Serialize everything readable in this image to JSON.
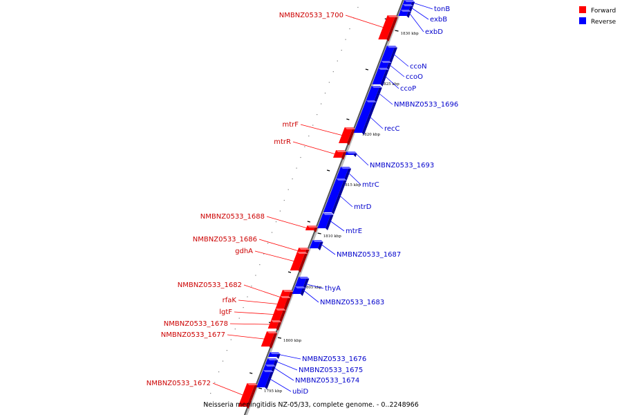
{
  "legend": {
    "forward": {
      "label": "Forward",
      "color": "#ff0000"
    },
    "reverse": {
      "label": "Reverse",
      "color": "#0000ff"
    }
  },
  "caption": "Neisseria meningitidis NZ-05/33, complete genome. - 0..2248966",
  "axis": {
    "unit": "kbp",
    "ticks": [
      {
        "label": "1830 kbp",
        "value": 1830
      },
      {
        "label": "1825 kbp",
        "value": 1825
      },
      {
        "label": "1820 kbp",
        "value": 1820
      },
      {
        "label": "1815 kbp",
        "value": 1815
      },
      {
        "label": "1810 kbp",
        "value": 1810
      },
      {
        "label": "1805 kbp",
        "value": 1805
      },
      {
        "label": "1800 kbp",
        "value": 1800
      },
      {
        "label": "1795 kbp",
        "value": 1795
      }
    ]
  },
  "genes": {
    "forward": [
      {
        "label": "NMBNZ0533_1700"
      },
      {
        "label": "mtrF"
      },
      {
        "label": "mtrR"
      },
      {
        "label": "NMBNZ0533_1688"
      },
      {
        "label": "NMBNZ0533_1686"
      },
      {
        "label": "gdhA"
      },
      {
        "label": "NMBNZ0533_1682"
      },
      {
        "label": "rfaK"
      },
      {
        "label": "lgtF"
      },
      {
        "label": "NMBNZ0533_1678"
      },
      {
        "label": "NMBNZ0533_1677"
      },
      {
        "label": "NMBNZ0533_1672"
      }
    ],
    "reverse": [
      {
        "label": "tonB"
      },
      {
        "label": "exbB"
      },
      {
        "label": "exbD"
      },
      {
        "label": "ccoN"
      },
      {
        "label": "ccoO"
      },
      {
        "label": "ccoP"
      },
      {
        "label": "NMBNZ0533_1696"
      },
      {
        "label": "recC"
      },
      {
        "label": "NMBNZ0533_1693"
      },
      {
        "label": "mtrC"
      },
      {
        "label": "mtrD"
      },
      {
        "label": "mtrE"
      },
      {
        "label": "NMBNZ0533_1687"
      },
      {
        "label": "thyA"
      },
      {
        "label": "NMBNZ0533_1683"
      },
      {
        "label": "NMBNZ0533_1676"
      },
      {
        "label": "NMBNZ0533_1675"
      },
      {
        "label": "NMBNZ0533_1674"
      },
      {
        "label": "ubiD"
      }
    ]
  }
}
